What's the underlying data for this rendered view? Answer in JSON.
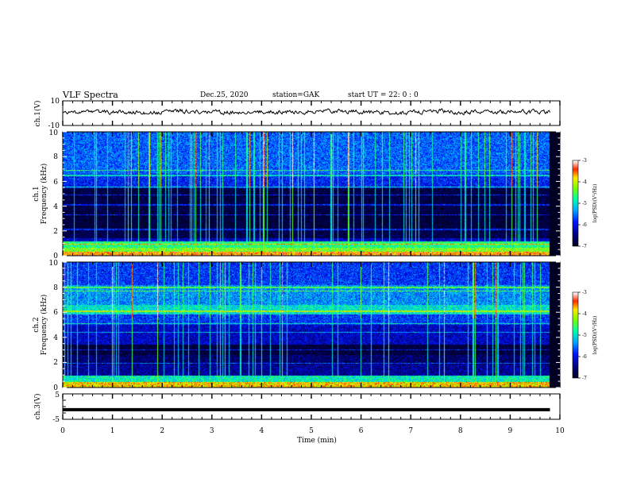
{
  "header": {
    "title": "VLF Spectra",
    "date": "Dec.25, 2020",
    "station": "station=GAK",
    "start_ut": "start  UT =   22: 0  : 0"
  },
  "chart_data": [
    {
      "type": "line",
      "panel": "ch1-waveform",
      "ylabel": "ch.1(V)",
      "ylim": [
        -10,
        10
      ],
      "ytick_labels": [
        "10",
        "-10"
      ],
      "xlim": [
        0,
        10
      ],
      "series_color": "#000000",
      "approx_level_v": 1.0,
      "approx_noise_v": 1.3
    },
    {
      "type": "heatmap",
      "panel": "ch1-spectrogram",
      "ylabel_top": "ch.1",
      "ylabel": "Frequency (kHz)",
      "ylim": [
        0,
        10
      ],
      "ytick_labels": [
        "0",
        "2",
        "4",
        "6",
        "8",
        "10"
      ],
      "xlim": [
        0,
        10
      ],
      "data_end_min": 9.8,
      "colorbar": {
        "label": "log(PSD)(V²/Hz)",
        "range": [
          -7,
          -3
        ],
        "tick_labels": [
          "-3",
          "-4",
          "-5",
          "-6",
          "-7"
        ]
      },
      "bands": [
        {
          "f": [
            0.0,
            0.3
          ],
          "level": -3.6
        },
        {
          "f": [
            0.3,
            0.6
          ],
          "level": -4.3
        },
        {
          "f": [
            0.6,
            1.1
          ],
          "level": -4.7
        },
        {
          "f": [
            1.1,
            1.4
          ],
          "level": -6.2
        },
        {
          "f": [
            1.4,
            2.2
          ],
          "level": -6.8
        },
        {
          "f": [
            2.2,
            3.2
          ],
          "level": -6.9
        },
        {
          "f": [
            3.2,
            5.5
          ],
          "level": -6.85
        },
        {
          "f": [
            5.5,
            6.6
          ],
          "level": -5.9
        },
        {
          "f": [
            6.6,
            10.0
          ],
          "level": -5.6
        }
      ],
      "lines_khz": [
        0.9,
        2.1,
        3.3,
        4.1,
        4.9,
        5.5,
        6.5,
        6.9
      ],
      "spike_density": 1.0
    },
    {
      "type": "heatmap",
      "panel": "ch2-spectrogram",
      "ylabel_top": "ch.2",
      "ylabel": "Frequency (kHz)",
      "ylim": [
        0,
        10
      ],
      "ytick_labels": [
        "0",
        "2",
        "4",
        "6",
        "8",
        "10"
      ],
      "xlim": [
        0,
        10
      ],
      "data_end_min": 9.8,
      "colorbar": {
        "label": "log(PSD)(V²/Hz)",
        "range": [
          -7,
          -3
        ],
        "tick_labels": [
          "-3",
          "-4",
          "-5",
          "-6",
          "-7"
        ]
      },
      "bands": [
        {
          "f": [
            0.0,
            0.4
          ],
          "level": -3.8
        },
        {
          "f": [
            0.4,
            0.9
          ],
          "level": -4.9
        },
        {
          "f": [
            0.9,
            1.8
          ],
          "level": -6.4
        },
        {
          "f": [
            1.8,
            2.6
          ],
          "level": -6.6
        },
        {
          "f": [
            2.6,
            3.4
          ],
          "level": -6.9
        },
        {
          "f": [
            3.4,
            5.0
          ],
          "level": -6.2
        },
        {
          "f": [
            5.0,
            5.8
          ],
          "level": -5.8
        },
        {
          "f": [
            5.8,
            6.6
          ],
          "level": -5.0
        },
        {
          "f": [
            6.6,
            8.2
          ],
          "level": -5.4
        },
        {
          "f": [
            8.2,
            10.0
          ],
          "level": -5.8
        }
      ],
      "lines_khz": [
        1.9,
        3.0,
        4.4,
        5.1,
        6.1,
        7.7,
        8.0
      ],
      "spike_density": 0.7
    },
    {
      "type": "line",
      "panel": "ch3-waveform",
      "ylabel": "ch.3(V)",
      "ylim": [
        -5,
        5
      ],
      "ytick_labels": [
        "5",
        "-5"
      ],
      "xlim": [
        0,
        10
      ],
      "xlabel": "Time (min)",
      "xtick_labels": [
        "0",
        "1",
        "2",
        "3",
        "4",
        "5",
        "6",
        "7",
        "8",
        "9",
        "10"
      ],
      "series_color": "#000000",
      "constant_v": -1.2
    }
  ]
}
